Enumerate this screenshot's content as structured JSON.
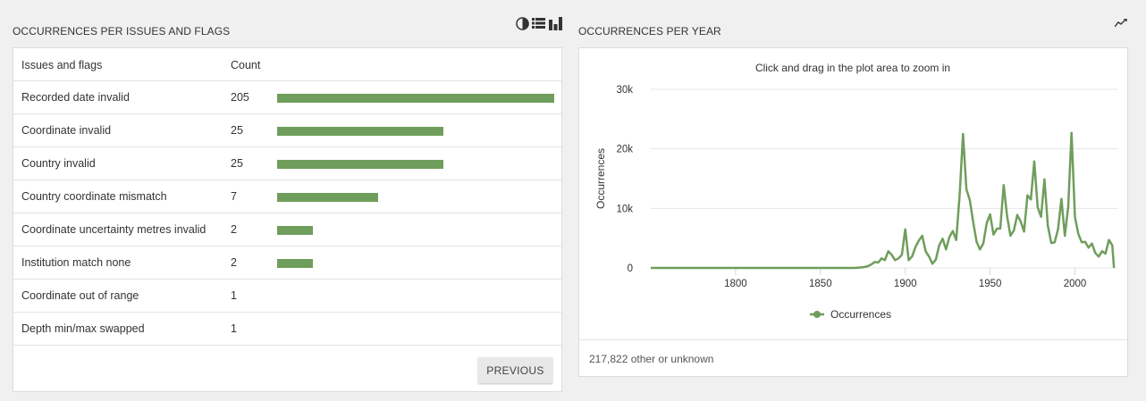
{
  "left_panel": {
    "title": "OCCURRENCES PER ISSUES AND FLAGS",
    "icons": [
      "pie-chart-icon",
      "list-icon",
      "bar-chart-icon"
    ],
    "table": {
      "headers": [
        "Issues and flags",
        "Count"
      ],
      "rows": [
        {
          "label": "Recorded date invalid",
          "count": "205"
        },
        {
          "label": "Coordinate invalid",
          "count": "25"
        },
        {
          "label": "Country invalid",
          "count": "25"
        },
        {
          "label": "Country coordinate mismatch",
          "count": "7"
        },
        {
          "label": "Coordinate uncertainty metres invalid",
          "count": "2"
        },
        {
          "label": "Institution match none",
          "count": "2"
        },
        {
          "label": "Coordinate out of range",
          "count": "1"
        },
        {
          "label": "Depth min/max swapped",
          "count": "1"
        }
      ],
      "bar_fractions": [
        1.0,
        0.6,
        0.6,
        0.365,
        0.13,
        0.13,
        0,
        0
      ],
      "bar_color": "#6f9e5c"
    },
    "previous_label": "PREVIOUS"
  },
  "right_panel": {
    "title": "OCCURRENCES PER YEAR",
    "icons": [
      "line-chart-icon"
    ],
    "zoom_hint": "Click and drag in the plot area to zoom in",
    "footer": "217,822 other or unknown"
  },
  "chart_data": {
    "type": "line",
    "ylabel": "Occurrences",
    "xlim": [
      1750,
      2025
    ],
    "ylim": [
      0,
      30000
    ],
    "xticks": [
      "1800",
      "1850",
      "1900",
      "1950",
      "2000"
    ],
    "yticks": [
      "0",
      "10k",
      "20k",
      "30k"
    ],
    "grid": true,
    "legend_position": "bottom",
    "color": "#6f9e5c",
    "series": [
      {
        "name": "Occurrences",
        "x": [
          1750,
          1870,
          1875,
          1878,
          1880,
          1882,
          1884,
          1886,
          1888,
          1890,
          1892,
          1894,
          1896,
          1898,
          1900,
          1902,
          1904,
          1906,
          1908,
          1910,
          1912,
          1914,
          1916,
          1918,
          1920,
          1922,
          1924,
          1926,
          1928,
          1930,
          1932,
          1934,
          1936,
          1938,
          1940,
          1942,
          1944,
          1946,
          1948,
          1950,
          1952,
          1954,
          1956,
          1958,
          1960,
          1962,
          1964,
          1966,
          1968,
          1970,
          1972,
          1974,
          1976,
          1978,
          1980,
          1982,
          1984,
          1986,
          1988,
          1990,
          1992,
          1994,
          1996,
          1998,
          2000,
          2002,
          2004,
          2006,
          2008,
          2010,
          2012,
          2014,
          2016,
          2018,
          2020,
          2022,
          2023
        ],
        "y": [
          0,
          0,
          100,
          300,
          600,
          1000,
          900,
          1600,
          1300,
          2800,
          2200,
          1300,
          1600,
          2200,
          6500,
          1300,
          1900,
          3500,
          4600,
          5400,
          2800,
          1900,
          700,
          1400,
          3800,
          4900,
          3100,
          5200,
          6200,
          4700,
          12200,
          22500,
          13200,
          11400,
          7700,
          4400,
          3100,
          4100,
          7500,
          9000,
          5600,
          6600,
          6600,
          13900,
          8700,
          5400,
          6300,
          8900,
          7800,
          6100,
          12200,
          11500,
          17900,
          10200,
          8600,
          14900,
          7100,
          4200,
          4300,
          6500,
          11600,
          5400,
          10300,
          22700,
          8600,
          5700,
          4300,
          4400,
          3400,
          4100,
          2500,
          1900,
          2800,
          2400,
          4700,
          3800,
          0
        ]
      }
    ]
  }
}
